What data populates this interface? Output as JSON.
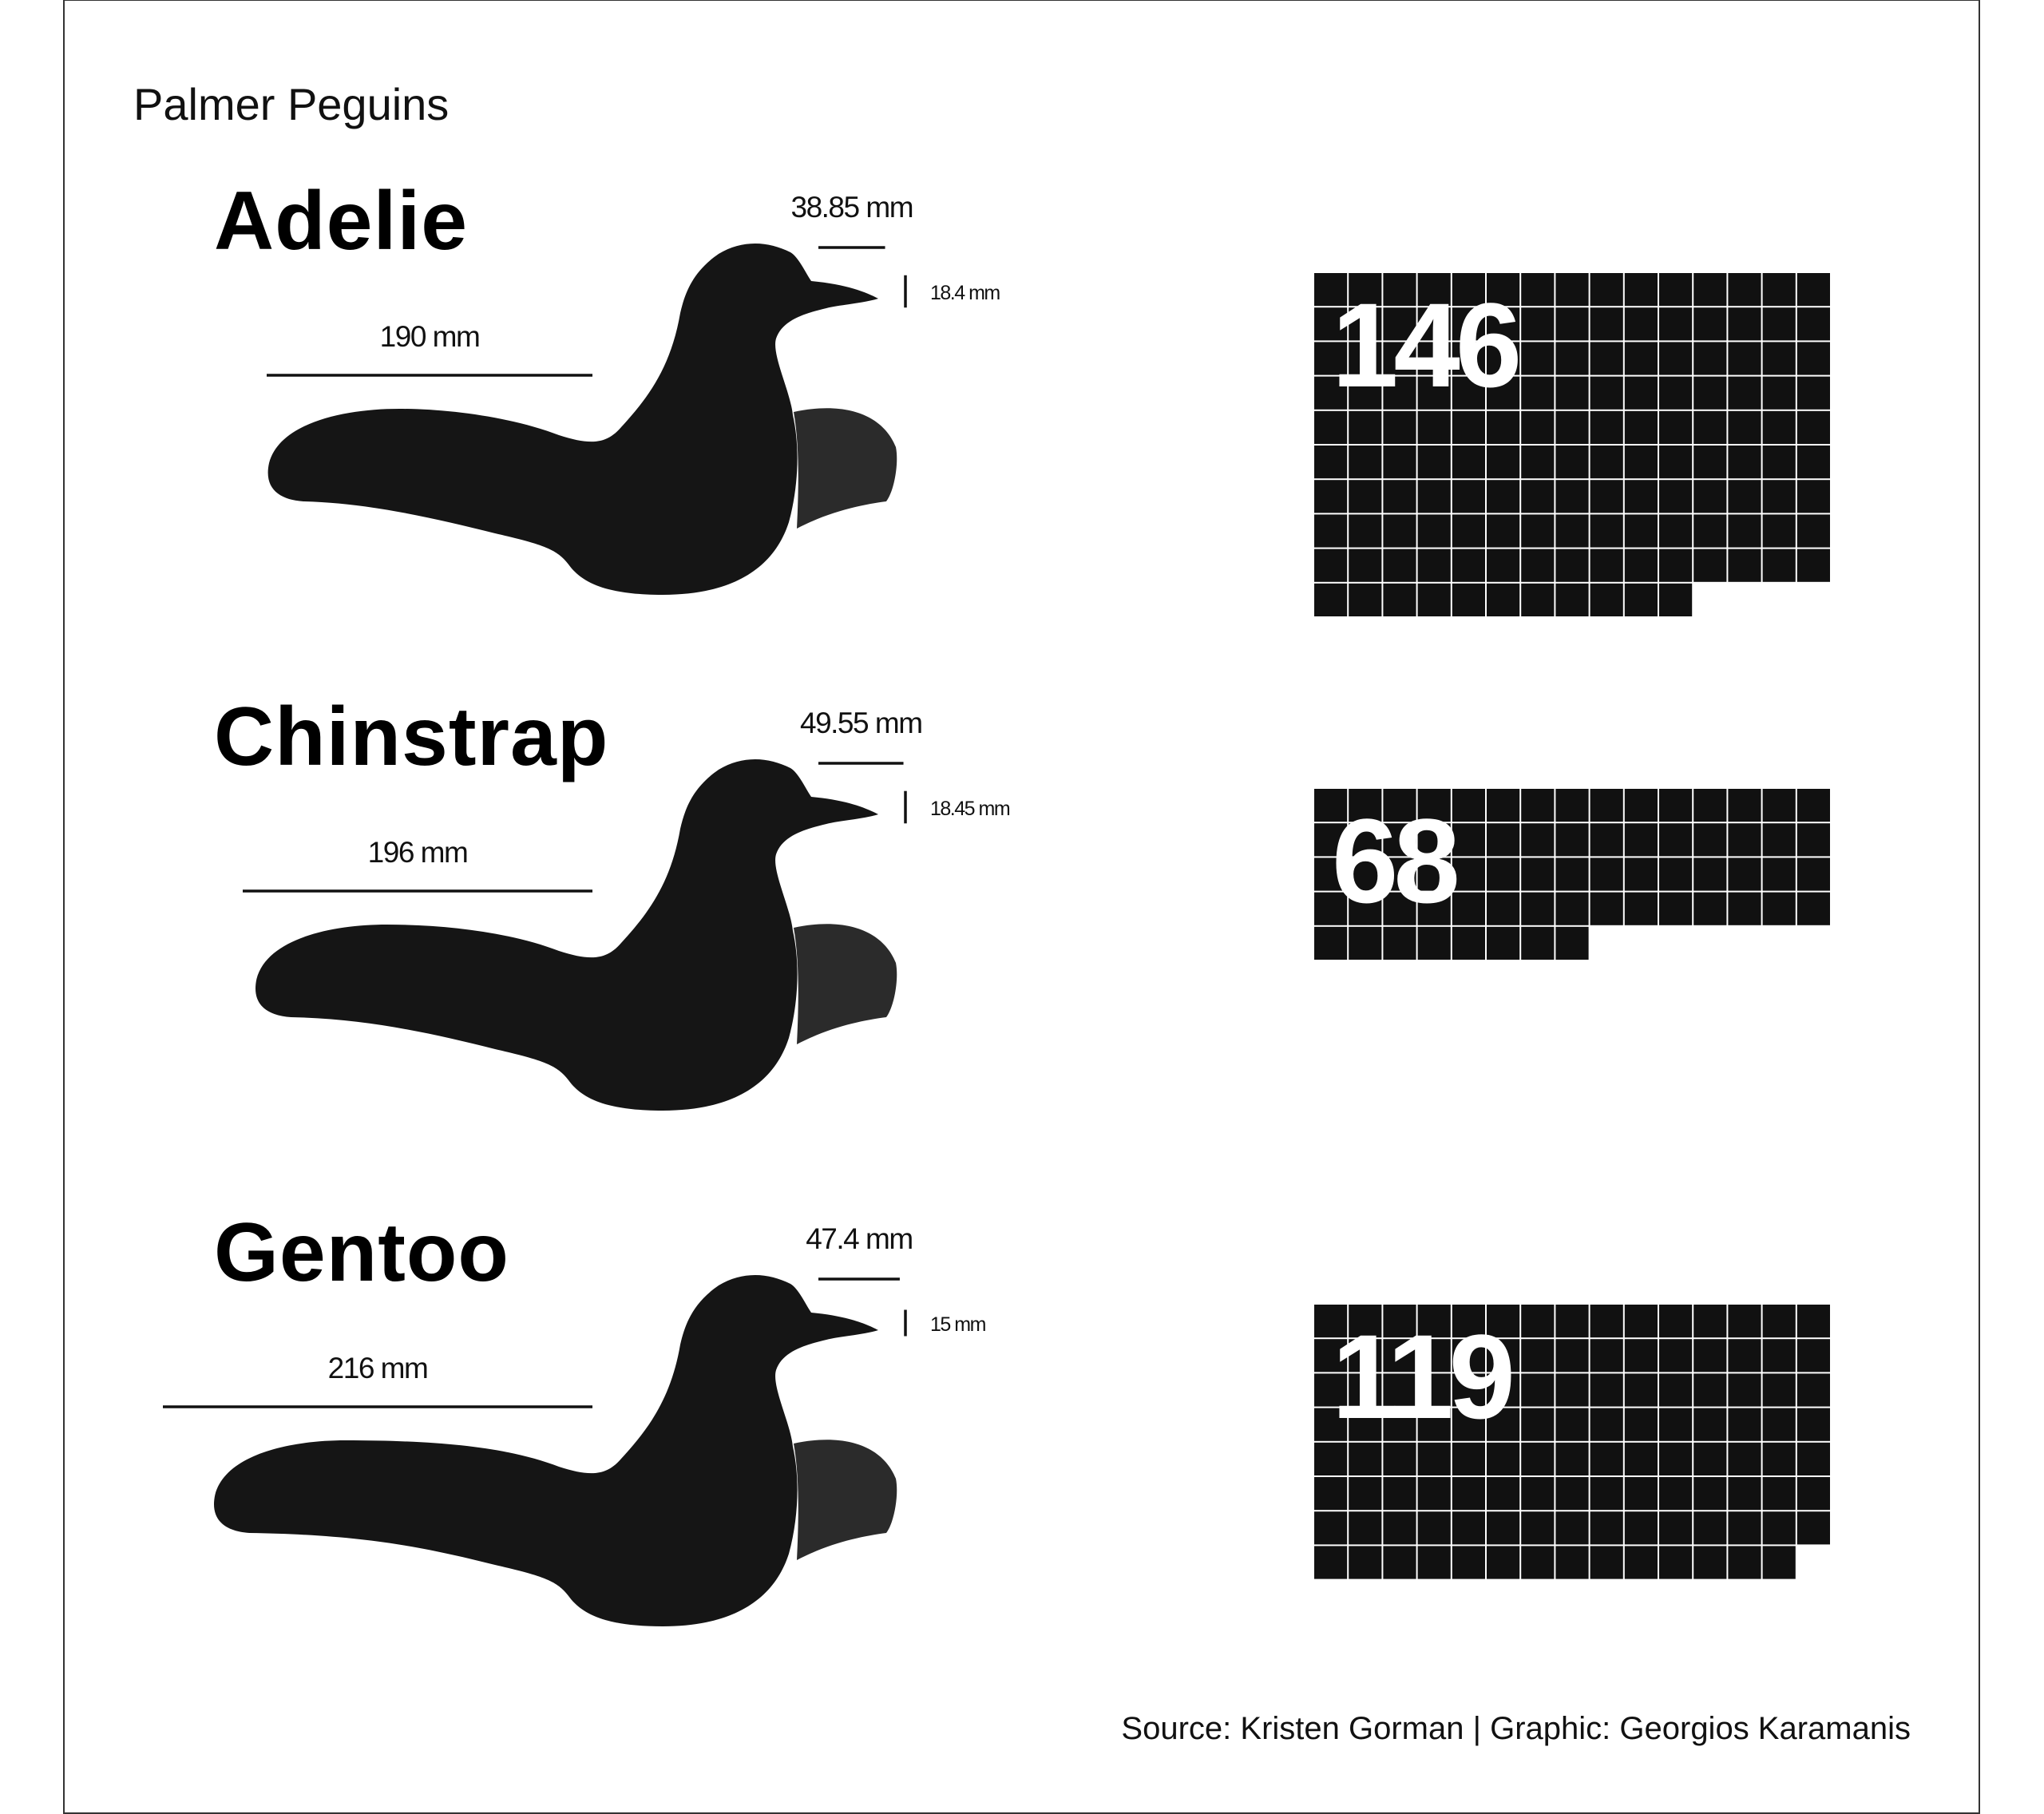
{
  "title": "Palmer Peguins",
  "source": "Source: Kristen Gorman | Graphic: Georgios Karamanis",
  "colors": {
    "background": "#ffffff",
    "body": "#151515",
    "flipper": "#2b2b2b",
    "square": "#111111",
    "count_text": "#ffffff",
    "border": "#333333"
  },
  "chart_data": {
    "type": "waffle",
    "grid_columns": 15,
    "units": "mm",
    "species": [
      {
        "name": "Adelie",
        "count": 146,
        "count_label": "146",
        "flipper_length_mm": 190,
        "flipper_label": "190 mm",
        "bill_length_mm": 38.85,
        "bill_length_label": "38.85 mm",
        "bill_depth_mm": 18.4,
        "bill_depth_label": "18.4 mm"
      },
      {
        "name": "Chinstrap",
        "count": 68,
        "count_label": "68",
        "flipper_length_mm": 196,
        "flipper_label": "196 mm",
        "bill_length_mm": 49.55,
        "bill_length_label": "49.55 mm",
        "bill_depth_mm": 18.45,
        "bill_depth_label": "18.45 mm"
      },
      {
        "name": "Gentoo",
        "count": 119,
        "count_label": "119",
        "flipper_length_mm": 216,
        "flipper_label": "216 mm",
        "bill_length_mm": 47.4,
        "bill_length_label": "47.4 mm",
        "bill_depth_mm": 15,
        "bill_depth_label": "15 mm"
      }
    ]
  }
}
